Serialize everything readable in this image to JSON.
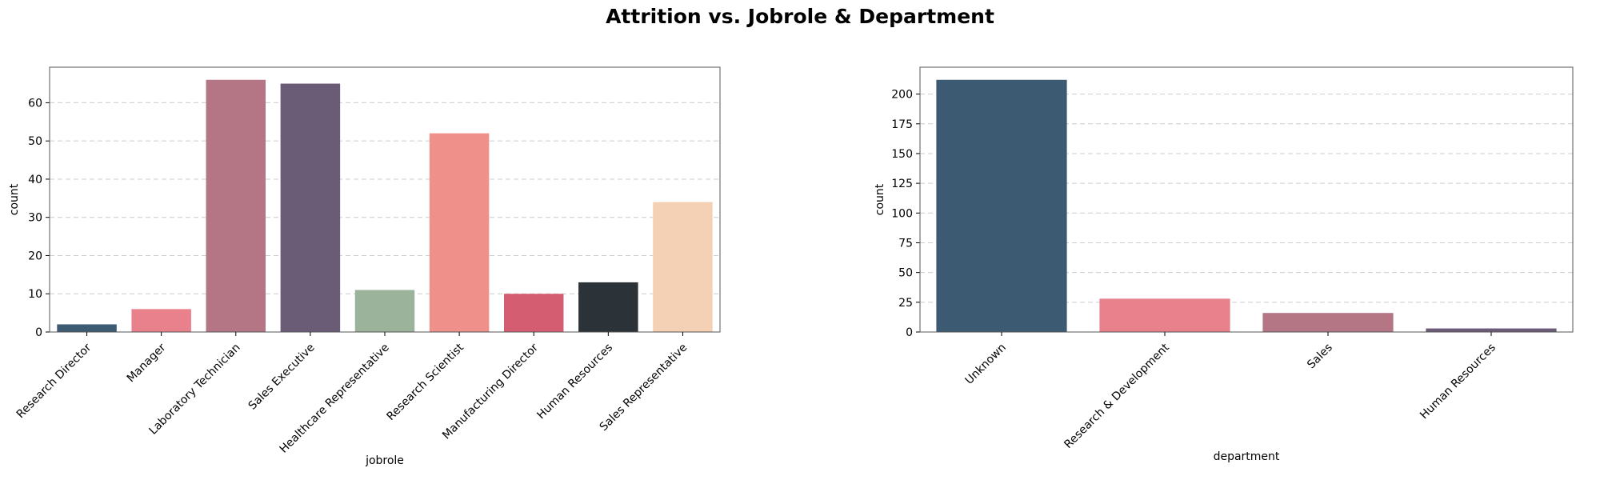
{
  "figure": {
    "title": "Attrition vs. Jobrole & Department"
  },
  "chart_data": [
    {
      "type": "bar",
      "title": "",
      "xlabel": "jobrole",
      "ylabel": "count",
      "categories": [
        "Research Director",
        "Manager",
        "Laboratory Technician",
        "Sales Executive",
        "Healthcare Representative",
        "Research Scientist",
        "Manufacturing Director",
        "Human Resources",
        "Sales Representative"
      ],
      "values": [
        2,
        6,
        66,
        65,
        11,
        52,
        10,
        13,
        34
      ],
      "colors": [
        "#3d5a73",
        "#e8818b",
        "#b47585",
        "#6a5c76",
        "#9bb39b",
        "#f0908a",
        "#d55d71",
        "#2b3238",
        "#f4d1b4"
      ],
      "ylim": [
        0,
        69.3
      ],
      "yticks": [
        0,
        10,
        20,
        30,
        40,
        50,
        60
      ],
      "grid": "y, dashed"
    },
    {
      "type": "bar",
      "title": "",
      "xlabel": "department",
      "ylabel": "count",
      "categories": [
        "Unknown",
        "Research & Development",
        "Sales",
        "Human Resources"
      ],
      "values": [
        212,
        28,
        16,
        3
      ],
      "colors": [
        "#3d5a73",
        "#e8818b",
        "#b47585",
        "#6a5c76"
      ],
      "ylim": [
        0,
        222.6
      ],
      "yticks": [
        0,
        25,
        50,
        75,
        100,
        125,
        150,
        175,
        200
      ],
      "grid": "y, dashed"
    }
  ]
}
